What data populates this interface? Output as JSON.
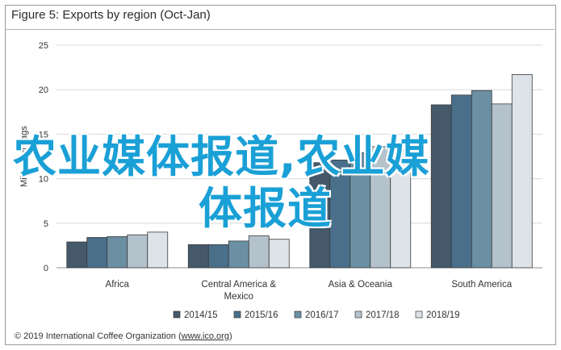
{
  "figure_title": "Figure 5: Exports by region (Oct-Jan)",
  "credit_prefix": "© 2019 International Coffee Organization (",
  "credit_link": "www.ico.org",
  "credit_suffix": ")",
  "watermark": {
    "line1": "农业媒体报道,农业媒",
    "line2": "体报道",
    "color": "#1aa0d6"
  },
  "chart_data": {
    "type": "bar",
    "title": "",
    "ylabel": "Millions of bags",
    "ylim": [
      0,
      25
    ],
    "yticks": [
      0,
      5,
      10,
      15,
      20,
      25
    ],
    "grid": true,
    "legend_position": "bottom",
    "categories": [
      "Africa",
      "Central America & Mexico",
      "Asia & Oceania",
      "South America"
    ],
    "category_label_lines": [
      [
        "Africa"
      ],
      [
        "Central America &",
        "Mexico"
      ],
      [
        "Asia & Oceania"
      ],
      [
        "South America"
      ]
    ],
    "series": [
      {
        "name": "2014/15",
        "color": "#45596b",
        "values": [
          2.9,
          2.6,
          11.8,
          18.3
        ]
      },
      {
        "name": "2015/16",
        "color": "#4a6f8b",
        "values": [
          3.4,
          2.6,
          12.1,
          19.4
        ]
      },
      {
        "name": "2016/17",
        "color": "#6b8fa3",
        "values": [
          3.5,
          3.0,
          12.9,
          19.9
        ]
      },
      {
        "name": "2017/18",
        "color": "#b4c2cc",
        "values": [
          3.7,
          3.6,
          13.6,
          18.4
        ]
      },
      {
        "name": "2018/19",
        "color": "#dde3e8",
        "values": [
          4.0,
          3.2,
          13.2,
          21.7
        ]
      }
    ]
  }
}
